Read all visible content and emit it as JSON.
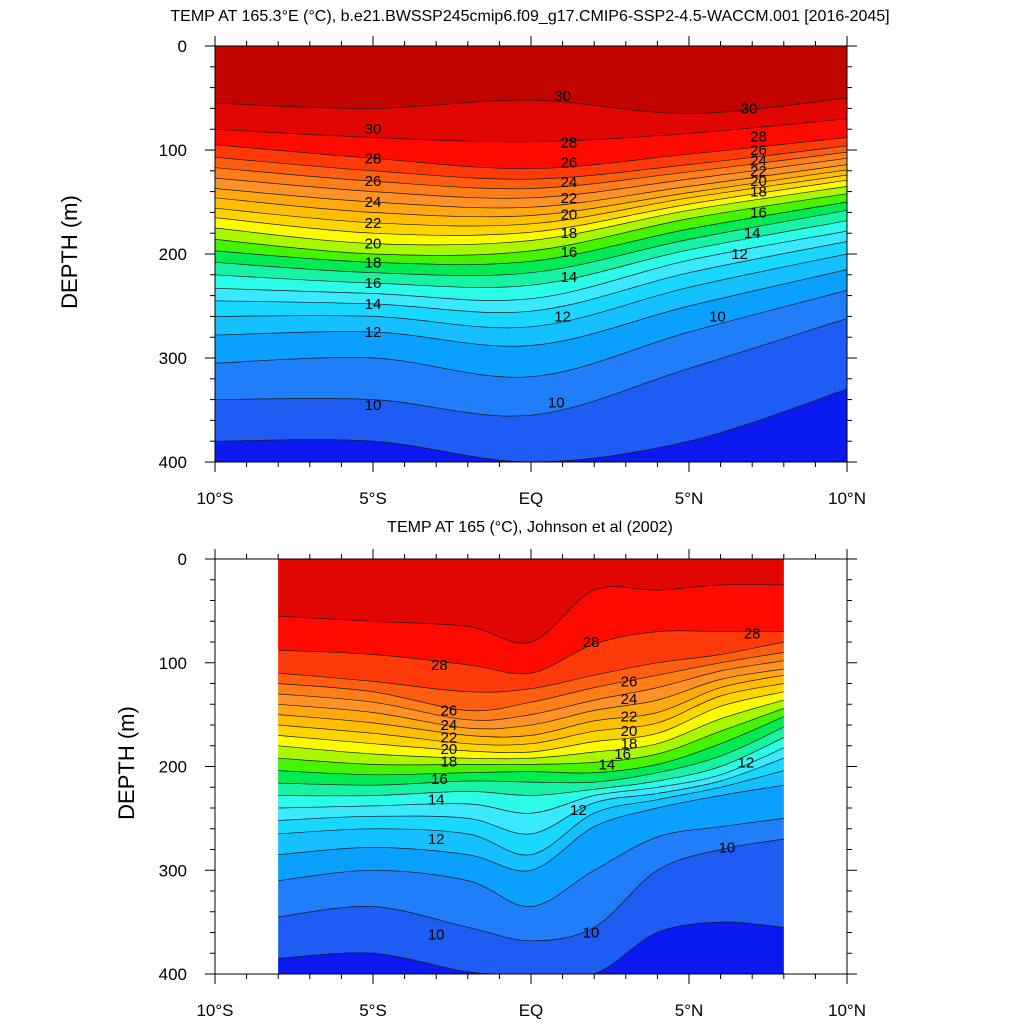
{
  "chart_data": [
    {
      "type": "heatmap",
      "subtype": "filled-contour-depth-section",
      "title": "TEMP AT 165.3°E (°C), b.e21.BWSSP245cmip6.f09_g17.CMIP6-SSP2-4.5-WACCM.001 [2016-2045]",
      "xlabel": "",
      "ylabel": "DEPTH (m)",
      "xlim": [
        -10,
        10
      ],
      "ylim": [
        400,
        0
      ],
      "data_xlim": [
        -10,
        10
      ],
      "x_tick_values": [
        -10,
        -5,
        0,
        5,
        10
      ],
      "x_tick_labels": [
        "10°S",
        "5°S",
        "EQ",
        "5°N",
        "10°N"
      ],
      "y_tick_values": [
        0,
        100,
        200,
        300,
        400
      ],
      "y_tick_labels": [
        "0",
        "100",
        "200",
        "300",
        "400"
      ],
      "x_profile": [
        -10,
        -5,
        0,
        5,
        10
      ],
      "isotherm_depths": [
        {
          "level": 31,
          "depths": [
            0,
            0,
            0,
            0,
            0
          ]
        },
        {
          "level": 30,
          "depths": [
            55,
            60,
            52,
            65,
            50
          ]
        },
        {
          "level": 29,
          "depths": [
            80,
            88,
            92,
            84,
            70
          ]
        },
        {
          "level": 28,
          "depths": [
            95,
            108,
            118,
            104,
            88
          ]
        },
        {
          "level": 27,
          "depths": [
            107,
            120,
            128,
            114,
            96
          ]
        },
        {
          "level": 26,
          "depths": [
            117,
            130,
            137,
            121,
            102
          ]
        },
        {
          "level": 25,
          "depths": [
            127,
            140,
            146,
            128,
            108
          ]
        },
        {
          "level": 24,
          "depths": [
            137,
            150,
            155,
            135,
            114
          ]
        },
        {
          "level": 23,
          "depths": [
            146,
            160,
            163,
            141,
            119
          ]
        },
        {
          "level": 22,
          "depths": [
            156,
            170,
            171,
            146,
            124
          ]
        },
        {
          "level": 21,
          "depths": [
            165,
            180,
            179,
            152,
            129
          ]
        },
        {
          "level": 20,
          "depths": [
            175,
            190,
            187,
            158,
            135
          ]
        },
        {
          "level": 19,
          "depths": [
            186,
            200,
            197,
            166,
            142
          ]
        },
        {
          "level": 18,
          "depths": [
            197,
            208,
            207,
            176,
            150
          ]
        },
        {
          "level": 17,
          "depths": [
            208,
            218,
            218,
            186,
            158
          ]
        },
        {
          "level": 16,
          "depths": [
            220,
            228,
            230,
            196,
            168
          ]
        },
        {
          "level": 15,
          "depths": [
            233,
            238,
            243,
            206,
            178
          ]
        },
        {
          "level": 14,
          "depths": [
            245,
            248,
            255,
            218,
            188
          ]
        },
        {
          "level": 13,
          "depths": [
            260,
            260,
            270,
            232,
            200
          ]
        },
        {
          "level": 12,
          "depths": [
            278,
            275,
            288,
            250,
            215
          ]
        },
        {
          "level": 11,
          "depths": [
            305,
            300,
            318,
            275,
            235
          ]
        },
        {
          "level": 10,
          "depths": [
            340,
            340,
            355,
            310,
            262
          ]
        },
        {
          "level": 9,
          "depths": [
            380,
            380,
            400,
            380,
            330
          ]
        },
        {
          "level": 8,
          "depths": [
            400,
            400,
            400,
            400,
            400
          ]
        }
      ],
      "contour_labels": [
        {
          "text": "30",
          "x": -5.0,
          "depth": 80
        },
        {
          "text": "28",
          "x": -5.0,
          "depth": 108
        },
        {
          "text": "26",
          "x": -5.0,
          "depth": 130
        },
        {
          "text": "24",
          "x": -5.0,
          "depth": 150
        },
        {
          "text": "22",
          "x": -5.0,
          "depth": 170
        },
        {
          "text": "20",
          "x": -5.0,
          "depth": 190
        },
        {
          "text": "18",
          "x": -5.0,
          "depth": 208
        },
        {
          "text": "16",
          "x": -5.0,
          "depth": 228
        },
        {
          "text": "14",
          "x": -5.0,
          "depth": 248
        },
        {
          "text": "12",
          "x": -5.0,
          "depth": 275
        },
        {
          "text": "10",
          "x": -5.0,
          "depth": 345
        },
        {
          "text": "30",
          "x": 1.0,
          "depth": 48
        },
        {
          "text": "28",
          "x": 1.2,
          "depth": 93
        },
        {
          "text": "26",
          "x": 1.2,
          "depth": 112
        },
        {
          "text": "24",
          "x": 1.2,
          "depth": 131
        },
        {
          "text": "22",
          "x": 1.2,
          "depth": 146
        },
        {
          "text": "20",
          "x": 1.2,
          "depth": 162
        },
        {
          "text": "18",
          "x": 1.2,
          "depth": 180
        },
        {
          "text": "16",
          "x": 1.2,
          "depth": 198
        },
        {
          "text": "14",
          "x": 1.2,
          "depth": 222
        },
        {
          "text": "12",
          "x": 1.0,
          "depth": 260
        },
        {
          "text": "10",
          "x": 0.8,
          "depth": 343
        },
        {
          "text": "30",
          "x": 6.9,
          "depth": 60
        },
        {
          "text": "28",
          "x": 7.2,
          "depth": 87
        },
        {
          "text": "26",
          "x": 7.2,
          "depth": 100
        },
        {
          "text": "24",
          "x": 7.2,
          "depth": 110
        },
        {
          "text": "22",
          "x": 7.2,
          "depth": 120
        },
        {
          "text": "20",
          "x": 7.2,
          "depth": 130
        },
        {
          "text": "18",
          "x": 7.2,
          "depth": 140
        },
        {
          "text": "16",
          "x": 7.2,
          "depth": 160
        },
        {
          "text": "14",
          "x": 7.0,
          "depth": 180
        },
        {
          "text": "12",
          "x": 6.6,
          "depth": 200
        },
        {
          "text": "10",
          "x": 5.9,
          "depth": 260
        }
      ]
    },
    {
      "type": "heatmap",
      "subtype": "filled-contour-depth-section",
      "title": "TEMP AT 165 (°C), Johnson et al (2002)",
      "xlabel": "",
      "ylabel": "DEPTH (m)",
      "xlim": [
        -10,
        10
      ],
      "ylim": [
        400,
        0
      ],
      "data_xlim": [
        -8,
        8
      ],
      "x_tick_values": [
        -10,
        -5,
        0,
        5,
        10
      ],
      "x_tick_labels": [
        "10°S",
        "5°S",
        "EQ",
        "5°N",
        "10°N"
      ],
      "y_tick_values": [
        0,
        100,
        200,
        300,
        400
      ],
      "y_tick_labels": [
        "0",
        "100",
        "200",
        "300",
        "400"
      ],
      "x_profile": [
        -8,
        -5,
        -2,
        0,
        2,
        4,
        6,
        8
      ],
      "isotherm_depths": [
        {
          "level": 30,
          "depths": [
            0,
            0,
            0,
            0,
            0,
            0,
            0,
            0
          ]
        },
        {
          "level": 29,
          "depths": [
            55,
            60,
            65,
            80,
            30,
            30,
            25,
            25
          ]
        },
        {
          "level": 28,
          "depths": [
            88,
            92,
            102,
            110,
            82,
            70,
            70,
            70
          ]
        },
        {
          "level": 27,
          "depths": [
            110,
            118,
            128,
            125,
            112,
            100,
            92,
            80
          ]
        },
        {
          "level": 26,
          "depths": [
            120,
            128,
            146,
            138,
            124,
            112,
            100,
            90
          ]
        },
        {
          "level": 25,
          "depths": [
            130,
            138,
            155,
            150,
            136,
            124,
            108,
            98
          ]
        },
        {
          "level": 24,
          "depths": [
            140,
            148,
            163,
            160,
            146,
            136,
            116,
            106
          ]
        },
        {
          "level": 23,
          "depths": [
            150,
            158,
            170,
            170,
            156,
            148,
            124,
            112
          ]
        },
        {
          "level": 22,
          "depths": [
            160,
            168,
            178,
            178,
            166,
            158,
            132,
            120
          ]
        },
        {
          "level": 21,
          "depths": [
            170,
            178,
            185,
            186,
            176,
            168,
            142,
            128
          ]
        },
        {
          "level": 20,
          "depths": [
            180,
            188,
            192,
            192,
            186,
            178,
            154,
            136
          ]
        },
        {
          "level": 19,
          "depths": [
            192,
            198,
            198,
            198,
            196,
            188,
            166,
            144
          ]
        },
        {
          "level": 18,
          "depths": [
            204,
            208,
            206,
            205,
            206,
            198,
            178,
            152
          ]
        },
        {
          "level": 17,
          "depths": [
            216,
            218,
            214,
            215,
            215,
            206,
            190,
            162
          ]
        },
        {
          "level": 16,
          "depths": [
            228,
            228,
            224,
            228,
            222,
            214,
            200,
            172
          ]
        },
        {
          "level": 15,
          "depths": [
            240,
            238,
            236,
            245,
            228,
            220,
            208,
            182
          ]
        },
        {
          "level": 14,
          "depths": [
            252,
            248,
            250,
            265,
            235,
            226,
            214,
            192
          ]
        },
        {
          "level": 13,
          "depths": [
            265,
            260,
            265,
            285,
            245,
            232,
            220,
            204
          ]
        },
        {
          "level": 12,
          "depths": [
            285,
            278,
            285,
            300,
            258,
            240,
            228,
            218
          ]
        },
        {
          "level": 11,
          "depths": [
            310,
            300,
            310,
            335,
            300,
            268,
            258,
            250
          ]
        },
        {
          "level": 10,
          "depths": [
            345,
            335,
            355,
            368,
            355,
            300,
            280,
            270
          ]
        },
        {
          "level": 9,
          "depths": [
            385,
            380,
            398,
            400,
            400,
            360,
            350,
            355
          ]
        },
        {
          "level": 8,
          "depths": [
            400,
            400,
            400,
            400,
            400,
            400,
            400,
            400
          ]
        }
      ],
      "contour_labels": [
        {
          "text": "28",
          "x": -2.9,
          "depth": 102
        },
        {
          "text": "26",
          "x": -2.6,
          "depth": 146
        },
        {
          "text": "24",
          "x": -2.6,
          "depth": 160
        },
        {
          "text": "22",
          "x": -2.6,
          "depth": 172
        },
        {
          "text": "20",
          "x": -2.6,
          "depth": 183
        },
        {
          "text": "18",
          "x": -2.6,
          "depth": 195
        },
        {
          "text": "16",
          "x": -2.9,
          "depth": 212
        },
        {
          "text": "14",
          "x": -3.0,
          "depth": 232
        },
        {
          "text": "12",
          "x": -3.0,
          "depth": 270
        },
        {
          "text": "10",
          "x": -3.0,
          "depth": 362
        },
        {
          "text": "28",
          "x": 1.9,
          "depth": 80
        },
        {
          "text": "26",
          "x": 3.1,
          "depth": 118
        },
        {
          "text": "24",
          "x": 3.1,
          "depth": 135
        },
        {
          "text": "22",
          "x": 3.1,
          "depth": 152
        },
        {
          "text": "20",
          "x": 3.1,
          "depth": 166
        },
        {
          "text": "18",
          "x": 3.1,
          "depth": 178
        },
        {
          "text": "16",
          "x": 2.9,
          "depth": 188
        },
        {
          "text": "14",
          "x": 2.4,
          "depth": 198
        },
        {
          "text": "12",
          "x": 1.5,
          "depth": 242
        },
        {
          "text": "10",
          "x": 1.9,
          "depth": 360
        },
        {
          "text": "28",
          "x": 7.0,
          "depth": 72
        },
        {
          "text": "12",
          "x": 6.8,
          "depth": 196
        },
        {
          "text": "10",
          "x": 6.2,
          "depth": 278
        }
      ]
    }
  ],
  "colors": {
    "background": "#ffffff",
    "contour_line": "#1a1a1a",
    "temperature_levels": [
      8,
      9,
      10,
      11,
      12,
      13,
      14,
      15,
      16,
      17,
      18,
      19,
      20,
      21,
      22,
      23,
      24,
      25,
      26,
      27,
      28,
      29,
      30,
      31
    ],
    "temperature_palette": [
      "#6a0ee6",
      "#0a1af0",
      "#1e5cf4",
      "#1f7ef8",
      "#0aa0ff",
      "#14c0ff",
      "#18d8ff",
      "#3ae9ff",
      "#2afce8",
      "#18f2a4",
      "#00ec52",
      "#44f400",
      "#aaf800",
      "#fbfb00",
      "#ffd500",
      "#ffbf00",
      "#ffa810",
      "#ff9226",
      "#ff7e18",
      "#ff5e10",
      "#ff3a08",
      "#ff0a00",
      "#e20600",
      "#c20400"
    ]
  }
}
